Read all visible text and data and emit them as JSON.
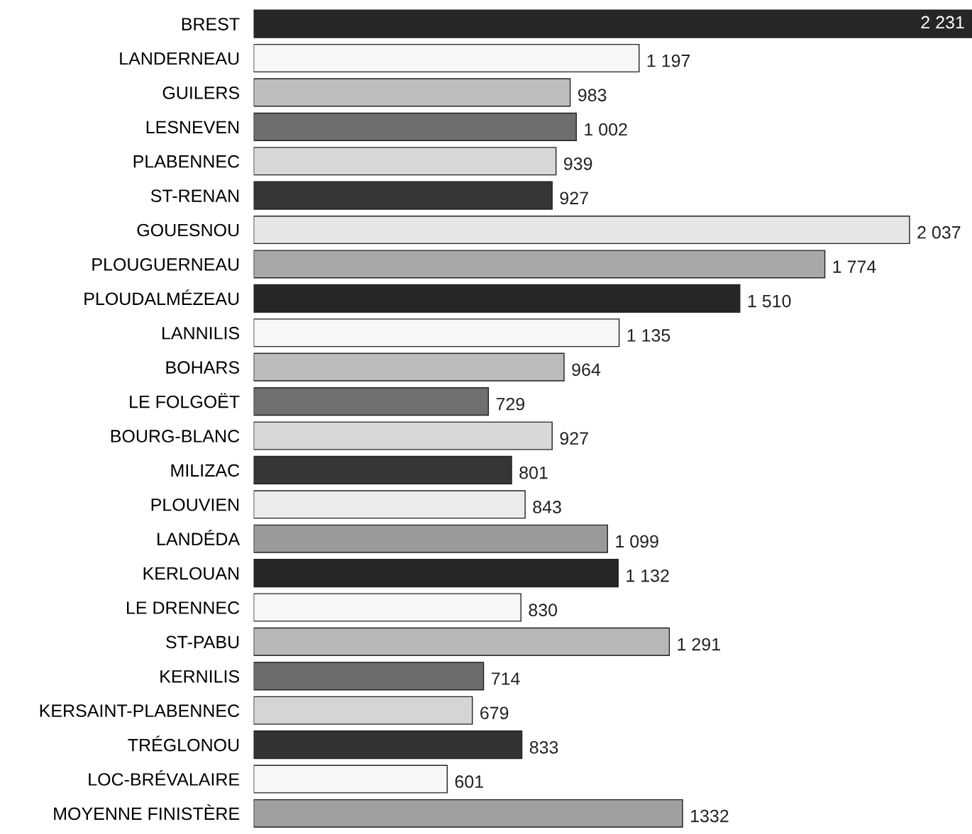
{
  "chart_data": {
    "type": "bar",
    "orientation": "horizontal",
    "categories": [
      "BREST",
      "LANDERNEAU",
      "GUILERS",
      "LESNEVEN",
      "PLABENNEC",
      "ST-RENAN",
      "GOUESNOU",
      "PLOUGUERNEAU",
      "PLOUDALMÉZEAU",
      "LANNILIS",
      "BOHARS",
      "LE FOLGOËT",
      "BOURG-BLANC",
      "MILIZAC",
      "PLOUVIEN",
      "LANDÉDA",
      "KERLOUAN",
      "LE DRENNEC",
      "ST-PABU",
      "KERNILIS",
      "KERSAINT-PLABENNEC",
      "TRÉGLONOU",
      "LOC-BRÉVALAIRE",
      "MOYENNE FINISTÈRE"
    ],
    "values": [
      2231,
      1197,
      983,
      1002,
      939,
      927,
      2037,
      1774,
      1510,
      1135,
      964,
      729,
      927,
      801,
      843,
      1099,
      1132,
      830,
      1291,
      714,
      679,
      833,
      601,
      1332
    ],
    "value_labels": [
      "2 231",
      "1 197",
      "983",
      "1 002",
      "939",
      "927",
      "2 037",
      "1 774",
      "1 510",
      "1 135",
      "964",
      "729",
      "927",
      "801",
      "843",
      "1 099",
      "1 132",
      "830",
      "1 291",
      "714",
      "679",
      "833",
      "601",
      "1332"
    ],
    "colors": [
      "#262626",
      "#f7f7f7",
      "#bdbdbd",
      "#6e6e6e",
      "#d8d8d8",
      "#363636",
      "#e6e6e6",
      "#a8a8a8",
      "#262626",
      "#f7f7f7",
      "#bbbbbb",
      "#707070",
      "#d8d8d8",
      "#363636",
      "#ececec",
      "#9a9a9a",
      "#262626",
      "#f7f7f7",
      "#b8b8b8",
      "#6c6c6c",
      "#d5d5d5",
      "#333333",
      "#f7f7f7",
      "#a0a0a0"
    ],
    "xlim": [
      0,
      2231
    ],
    "grid": false,
    "legend": false
  }
}
